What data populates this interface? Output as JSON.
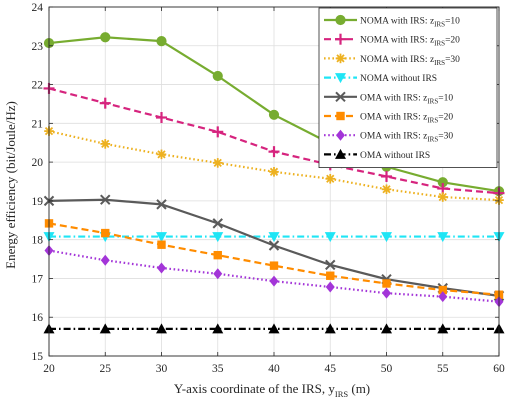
{
  "chart_data": {
    "type": "line",
    "x": [
      20,
      25,
      30,
      35,
      40,
      45,
      50,
      55,
      60
    ],
    "xlim": [
      20,
      60
    ],
    "ylim": [
      15,
      24
    ],
    "xticks": [
      "20",
      "25",
      "30",
      "35",
      "40",
      "45",
      "50",
      "55",
      "60"
    ],
    "yticks": [
      "15",
      "16",
      "17",
      "18",
      "19",
      "20",
      "21",
      "22",
      "23",
      "24"
    ],
    "xlabel": {
      "main": "Y-axis coordinate of the IRS, y",
      "sub": "IRS",
      "suffix": " (m)"
    },
    "ylabel": "Energy efficiency (bit/Joule/Hz)",
    "grid": true,
    "legend_position": "top-right",
    "series": [
      {
        "name": "NOMA with IRS: z_IRS=10",
        "label_main": "NOMA with IRS: z",
        "label_sub": "IRS",
        "label_tail": "=10",
        "color": "#77ac30",
        "dash": "solid",
        "marker": "circle",
        "values": [
          23.07,
          23.22,
          23.12,
          22.22,
          21.22,
          20.48,
          19.88,
          19.48,
          19.25
        ]
      },
      {
        "name": "NOMA with IRS: z_IRS=20",
        "label_main": "NOMA with IRS: z",
        "label_sub": "IRS",
        "label_tail": "=20",
        "color": "#d6247e",
        "dash": "dashed",
        "marker": "plus",
        "values": [
          21.9,
          21.52,
          21.15,
          20.78,
          20.27,
          19.93,
          19.63,
          19.32,
          19.2
        ]
      },
      {
        "name": "NOMA with IRS: z_IRS=30",
        "label_main": "NOMA with IRS: z",
        "label_sub": "IRS",
        "label_tail": "=30",
        "color": "#edb120",
        "dash": "dotted",
        "marker": "asterisk",
        "values": [
          20.8,
          20.47,
          20.2,
          19.98,
          19.75,
          19.57,
          19.3,
          19.1,
          19.02
        ]
      },
      {
        "name": "NOMA without IRS",
        "label_main": "NOMA without IRS",
        "label_sub": "",
        "label_tail": "",
        "color": "#1fe5f5",
        "dash": "dashdot",
        "marker": "triangle-down",
        "values": [
          18.08,
          18.08,
          18.08,
          18.08,
          18.08,
          18.08,
          18.08,
          18.08,
          18.08
        ]
      },
      {
        "name": "OMA with IRS: z_IRS=10",
        "label_main": "OMA with IRS: z",
        "label_sub": "IRS",
        "label_tail": "=10",
        "color": "#5a5a5a",
        "dash": "solid",
        "marker": "x",
        "values": [
          19.0,
          19.03,
          18.91,
          18.42,
          17.85,
          17.35,
          16.98,
          16.75,
          16.55
        ]
      },
      {
        "name": "OMA with IRS: z_IRS=20",
        "label_main": "OMA with IRS: z",
        "label_sub": "IRS",
        "label_tail": "=20",
        "color": "#ff8c00",
        "dash": "dashed",
        "marker": "square",
        "values": [
          18.42,
          18.17,
          17.87,
          17.6,
          17.33,
          17.07,
          16.87,
          16.7,
          16.58
        ]
      },
      {
        "name": "OMA with IRS: z_IRS=30",
        "label_main": "OMA with IRS: z",
        "label_sub": "IRS",
        "label_tail": "=30",
        "color": "#a335d8",
        "dash": "dotted",
        "marker": "diamond",
        "values": [
          17.72,
          17.47,
          17.27,
          17.12,
          16.93,
          16.78,
          16.62,
          16.53,
          16.4
        ]
      },
      {
        "name": "OMA without IRS",
        "label_main": "OMA without IRS",
        "label_sub": "",
        "label_tail": "",
        "color": "#000000",
        "dash": "dashdot",
        "marker": "triangle-up",
        "values": [
          15.7,
          15.7,
          15.7,
          15.7,
          15.7,
          15.7,
          15.7,
          15.7,
          15.7
        ]
      }
    ]
  }
}
